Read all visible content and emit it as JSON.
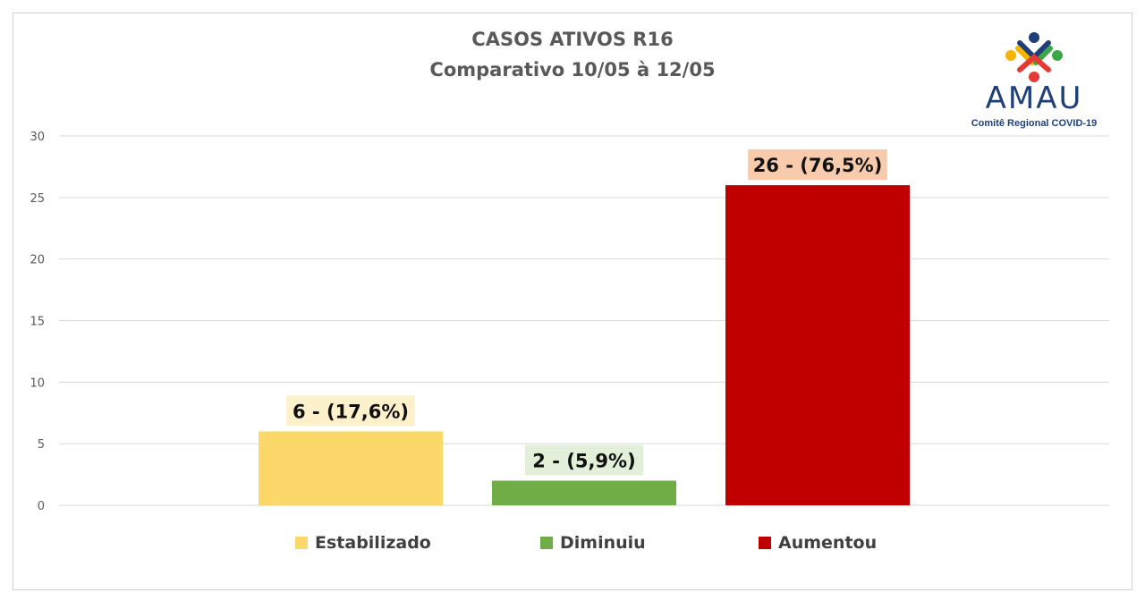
{
  "logo": {
    "name": "AMAU",
    "subtitle": "Comitê Regional COVID-19"
  },
  "chart_data": {
    "type": "bar",
    "title": "CASOS ATIVOS R16",
    "subtitle": "Comparativo 10/05 à 12/05",
    "categories": [
      "Estabilizado",
      "Diminuiu",
      "Aumentou"
    ],
    "values": [
      6,
      2,
      26
    ],
    "data_labels": [
      "6 - (17,6%)",
      "2 - (5,9%)",
      "26 - (76,5%)"
    ],
    "colors": [
      "#fcd86a",
      "#70ad47",
      "#c00000"
    ],
    "label_bg": [
      "#fdf1cc",
      "#e2efd9",
      "#f8cbad"
    ],
    "ylim": [
      0,
      30
    ],
    "yticks": [
      0,
      5,
      10,
      15,
      20,
      25,
      30
    ],
    "grid": true,
    "legend": "bottom",
    "legend_items": [
      {
        "label": "Estabilizado",
        "color": "#fcd86a"
      },
      {
        "label": "Diminuiu",
        "color": "#70ad47"
      },
      {
        "label": "Aumentou",
        "color": "#c00000"
      }
    ]
  }
}
